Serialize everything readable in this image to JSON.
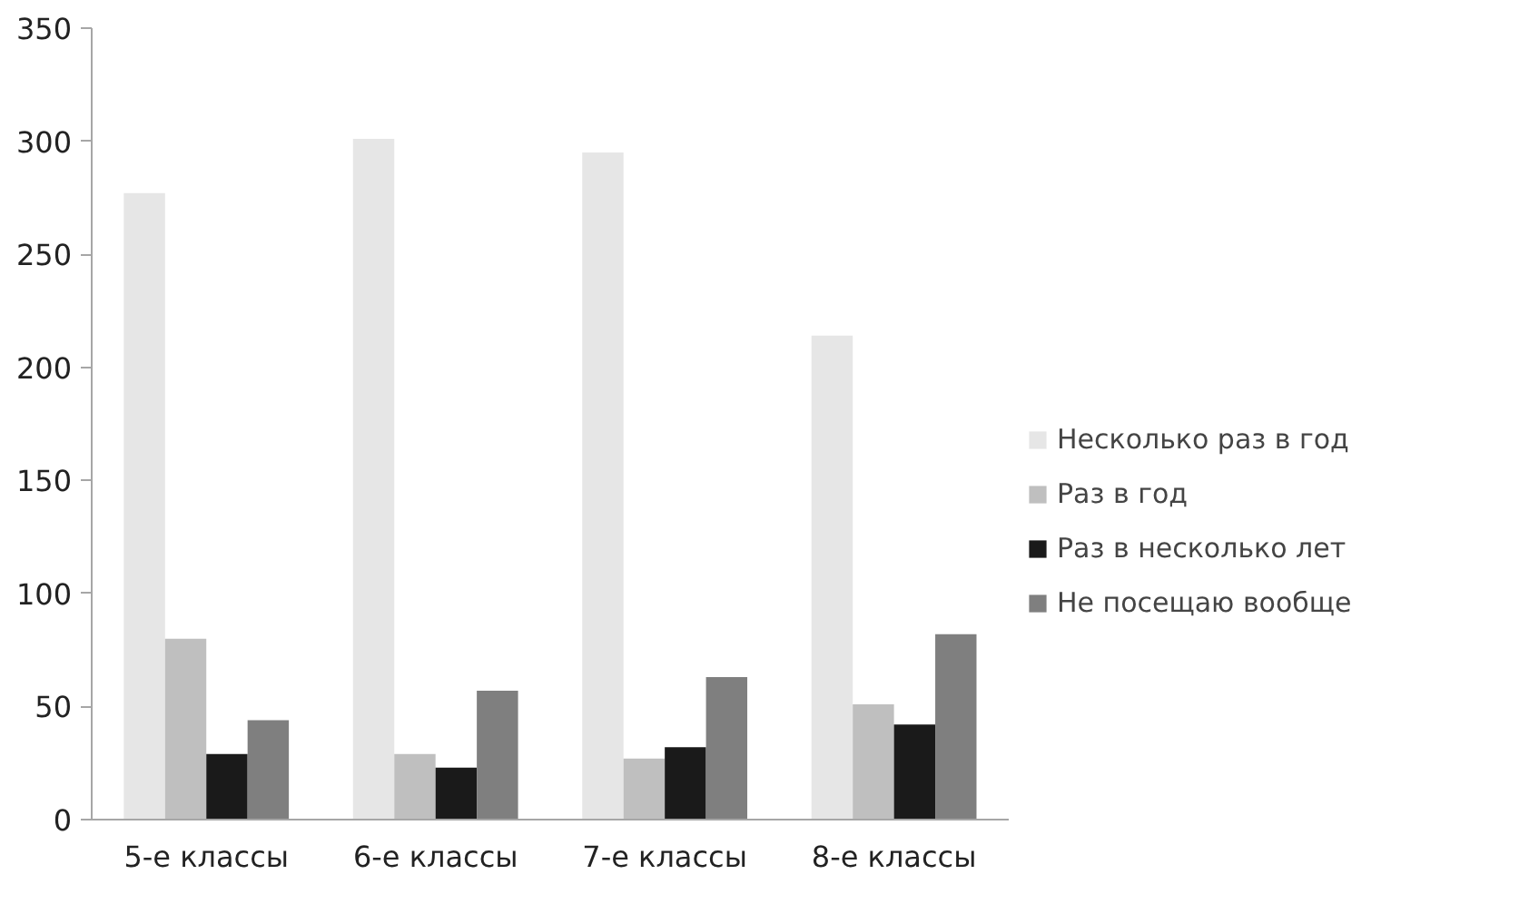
{
  "chart_data": {
    "type": "bar",
    "categories": [
      "5-е классы",
      "6-е классы",
      "7-е классы",
      "8-е классы"
    ],
    "series": [
      {
        "name": "Несколько раз в год",
        "color": "#e6e6e6",
        "values": [
          277,
          301,
          295,
          214
        ]
      },
      {
        "name": "Раз в год",
        "color": "#bfbfbf",
        "values": [
          80,
          29,
          27,
          51
        ]
      },
      {
        "name": "Раз в несколько лет",
        "color": "#1a1a1a",
        "values": [
          29,
          23,
          32,
          42
        ]
      },
      {
        "name": "Не посещаю вообще",
        "color": "#7f7f7f",
        "values": [
          44,
          57,
          63,
          82
        ]
      }
    ],
    "ylim": [
      0,
      350
    ],
    "yticks": [
      0,
      50,
      100,
      150,
      200,
      250,
      300,
      350
    ],
    "grid": false,
    "legend": "right"
  }
}
